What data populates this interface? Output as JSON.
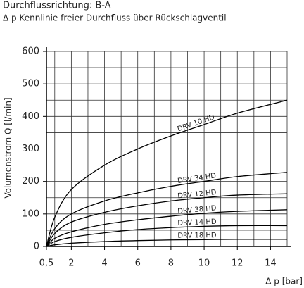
{
  "chart_data": {
    "type": "line",
    "title": "Durchflussrichtung: B-A",
    "subtitle": "Δ p Kennlinie freier Durchfluss über Rückschlagventil",
    "x_label": "Δ p [bar]",
    "y_label": "Volumenstrom Q [l/min]",
    "x": [
      0.5,
      1,
      2,
      4,
      6,
      8,
      10,
      12,
      15
    ],
    "series": [
      {
        "name": "DRV 10  HD",
        "color": "#000000",
        "values": [
          0,
          90,
          175,
          250,
          300,
          340,
          375,
          410,
          450
        ]
      },
      {
        "name": "DRV 34  HD",
        "color": "#000000",
        "values": [
          0,
          55,
          100,
          140,
          165,
          185,
          200,
          215,
          228
        ]
      },
      {
        "name": "DRV 12  HD",
        "color": "#000000",
        "values": [
          0,
          40,
          75,
          105,
          125,
          140,
          150,
          158,
          162
        ]
      },
      {
        "name": "DRV 38  HD",
        "color": "#000000",
        "values": [
          0,
          25,
          45,
          68,
          82,
          93,
          102,
          108,
          113
        ]
      },
      {
        "name": "DRV 14  HD",
        "color": "#000000",
        "values": [
          0,
          15,
          28,
          42,
          52,
          58,
          62,
          64,
          64
        ]
      },
      {
        "name": "DRV 18  HD",
        "color": "#000000",
        "values": [
          0,
          5,
          10,
          15,
          18,
          20,
          21,
          22,
          22
        ]
      }
    ],
    "xlim": [
      0.5,
      15
    ],
    "ylim": [
      0,
      600
    ],
    "xticks": [
      {
        "value": 0.5,
        "label": "0,5"
      },
      2,
      4,
      6,
      8,
      10,
      12,
      14
    ],
    "yticks": [
      0,
      100,
      200,
      300,
      400,
      500,
      600
    ],
    "xgrid": [
      1,
      2,
      3,
      4,
      5,
      6,
      7,
      8,
      9,
      10,
      11,
      12,
      13,
      14,
      15
    ],
    "ygrid": [
      50,
      100,
      150,
      200,
      250,
      300,
      350,
      400,
      450,
      500,
      550,
      600
    ],
    "grid": true
  }
}
